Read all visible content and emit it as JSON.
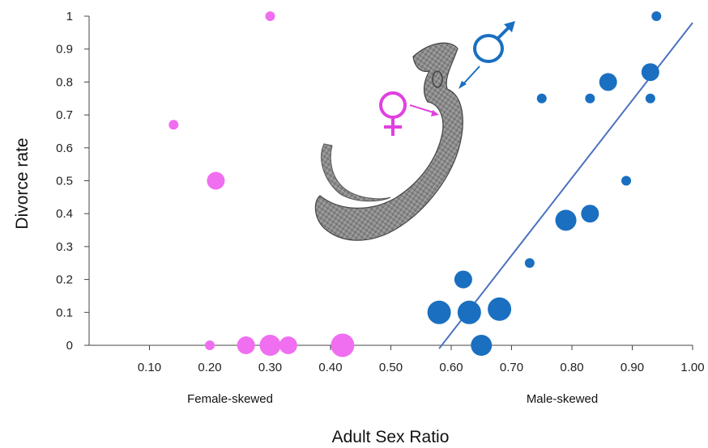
{
  "chart_data": {
    "type": "scatter",
    "title": "",
    "xlabel": "Adult Sex Ratio",
    "ylabel": "Divorce rate",
    "xlim": [
      0.0,
      1.0
    ],
    "ylim": [
      0,
      1
    ],
    "xticks": [
      "0.10",
      "0.20",
      "0.30",
      "0.40",
      "0.50",
      "0.60",
      "0.70",
      "0.80",
      "0.90",
      "1.00"
    ],
    "yticks": [
      "0",
      "0.1",
      "0.2",
      "0.3",
      "0.4",
      "0.5",
      "0.6",
      "0.7",
      "0.8",
      "0.9",
      "1"
    ],
    "annotations": [
      "Female-skewed",
      "Male-skewed"
    ],
    "grid": false,
    "series": [
      {
        "color": "#f06ef0",
        "points": [
          {
            "x": 0.3,
            "y": 1.0,
            "size": "small"
          },
          {
            "x": 0.14,
            "y": 0.67,
            "size": "small"
          },
          {
            "x": 0.21,
            "y": 0.5,
            "size": "medium"
          },
          {
            "x": 0.2,
            "y": 0.0,
            "size": "small"
          },
          {
            "x": 0.26,
            "y": 0.0,
            "size": "medium"
          },
          {
            "x": 0.3,
            "y": 0.0,
            "size": "large"
          },
          {
            "x": 0.33,
            "y": 0.0,
            "size": "medium"
          },
          {
            "x": 0.42,
            "y": 0.0,
            "size": "xlarge"
          }
        ]
      },
      {
        "color": "#1a6fc0",
        "points": [
          {
            "x": 0.94,
            "y": 1.0,
            "size": "small"
          },
          {
            "x": 0.93,
            "y": 0.83,
            "size": "medium"
          },
          {
            "x": 0.86,
            "y": 0.8,
            "size": "medium"
          },
          {
            "x": 0.75,
            "y": 0.75,
            "size": "small"
          },
          {
            "x": 0.83,
            "y": 0.75,
            "size": "small"
          },
          {
            "x": 0.93,
            "y": 0.75,
            "size": "small"
          },
          {
            "x": 0.89,
            "y": 0.5,
            "size": "small"
          },
          {
            "x": 0.83,
            "y": 0.4,
            "size": "medium"
          },
          {
            "x": 0.79,
            "y": 0.38,
            "size": "large"
          },
          {
            "x": 0.73,
            "y": 0.25,
            "size": "small"
          },
          {
            "x": 0.62,
            "y": 0.2,
            "size": "medium"
          },
          {
            "x": 0.58,
            "y": 0.1,
            "size": "xlarge"
          },
          {
            "x": 0.63,
            "y": 0.1,
            "size": "xlarge"
          },
          {
            "x": 0.68,
            "y": 0.11,
            "size": "xlarge"
          },
          {
            "x": 0.65,
            "y": 0.0,
            "size": "large"
          }
        ]
      }
    ],
    "trendline": {
      "color": "#4a72c0",
      "x": [
        0.58,
        1.0
      ],
      "y": [
        -0.01,
        0.98
      ]
    },
    "illustration": {
      "male_symbol": "♂",
      "female_symbol": "♀",
      "male_color": "#1a6fc0",
      "female_color": "#e040e0"
    }
  }
}
